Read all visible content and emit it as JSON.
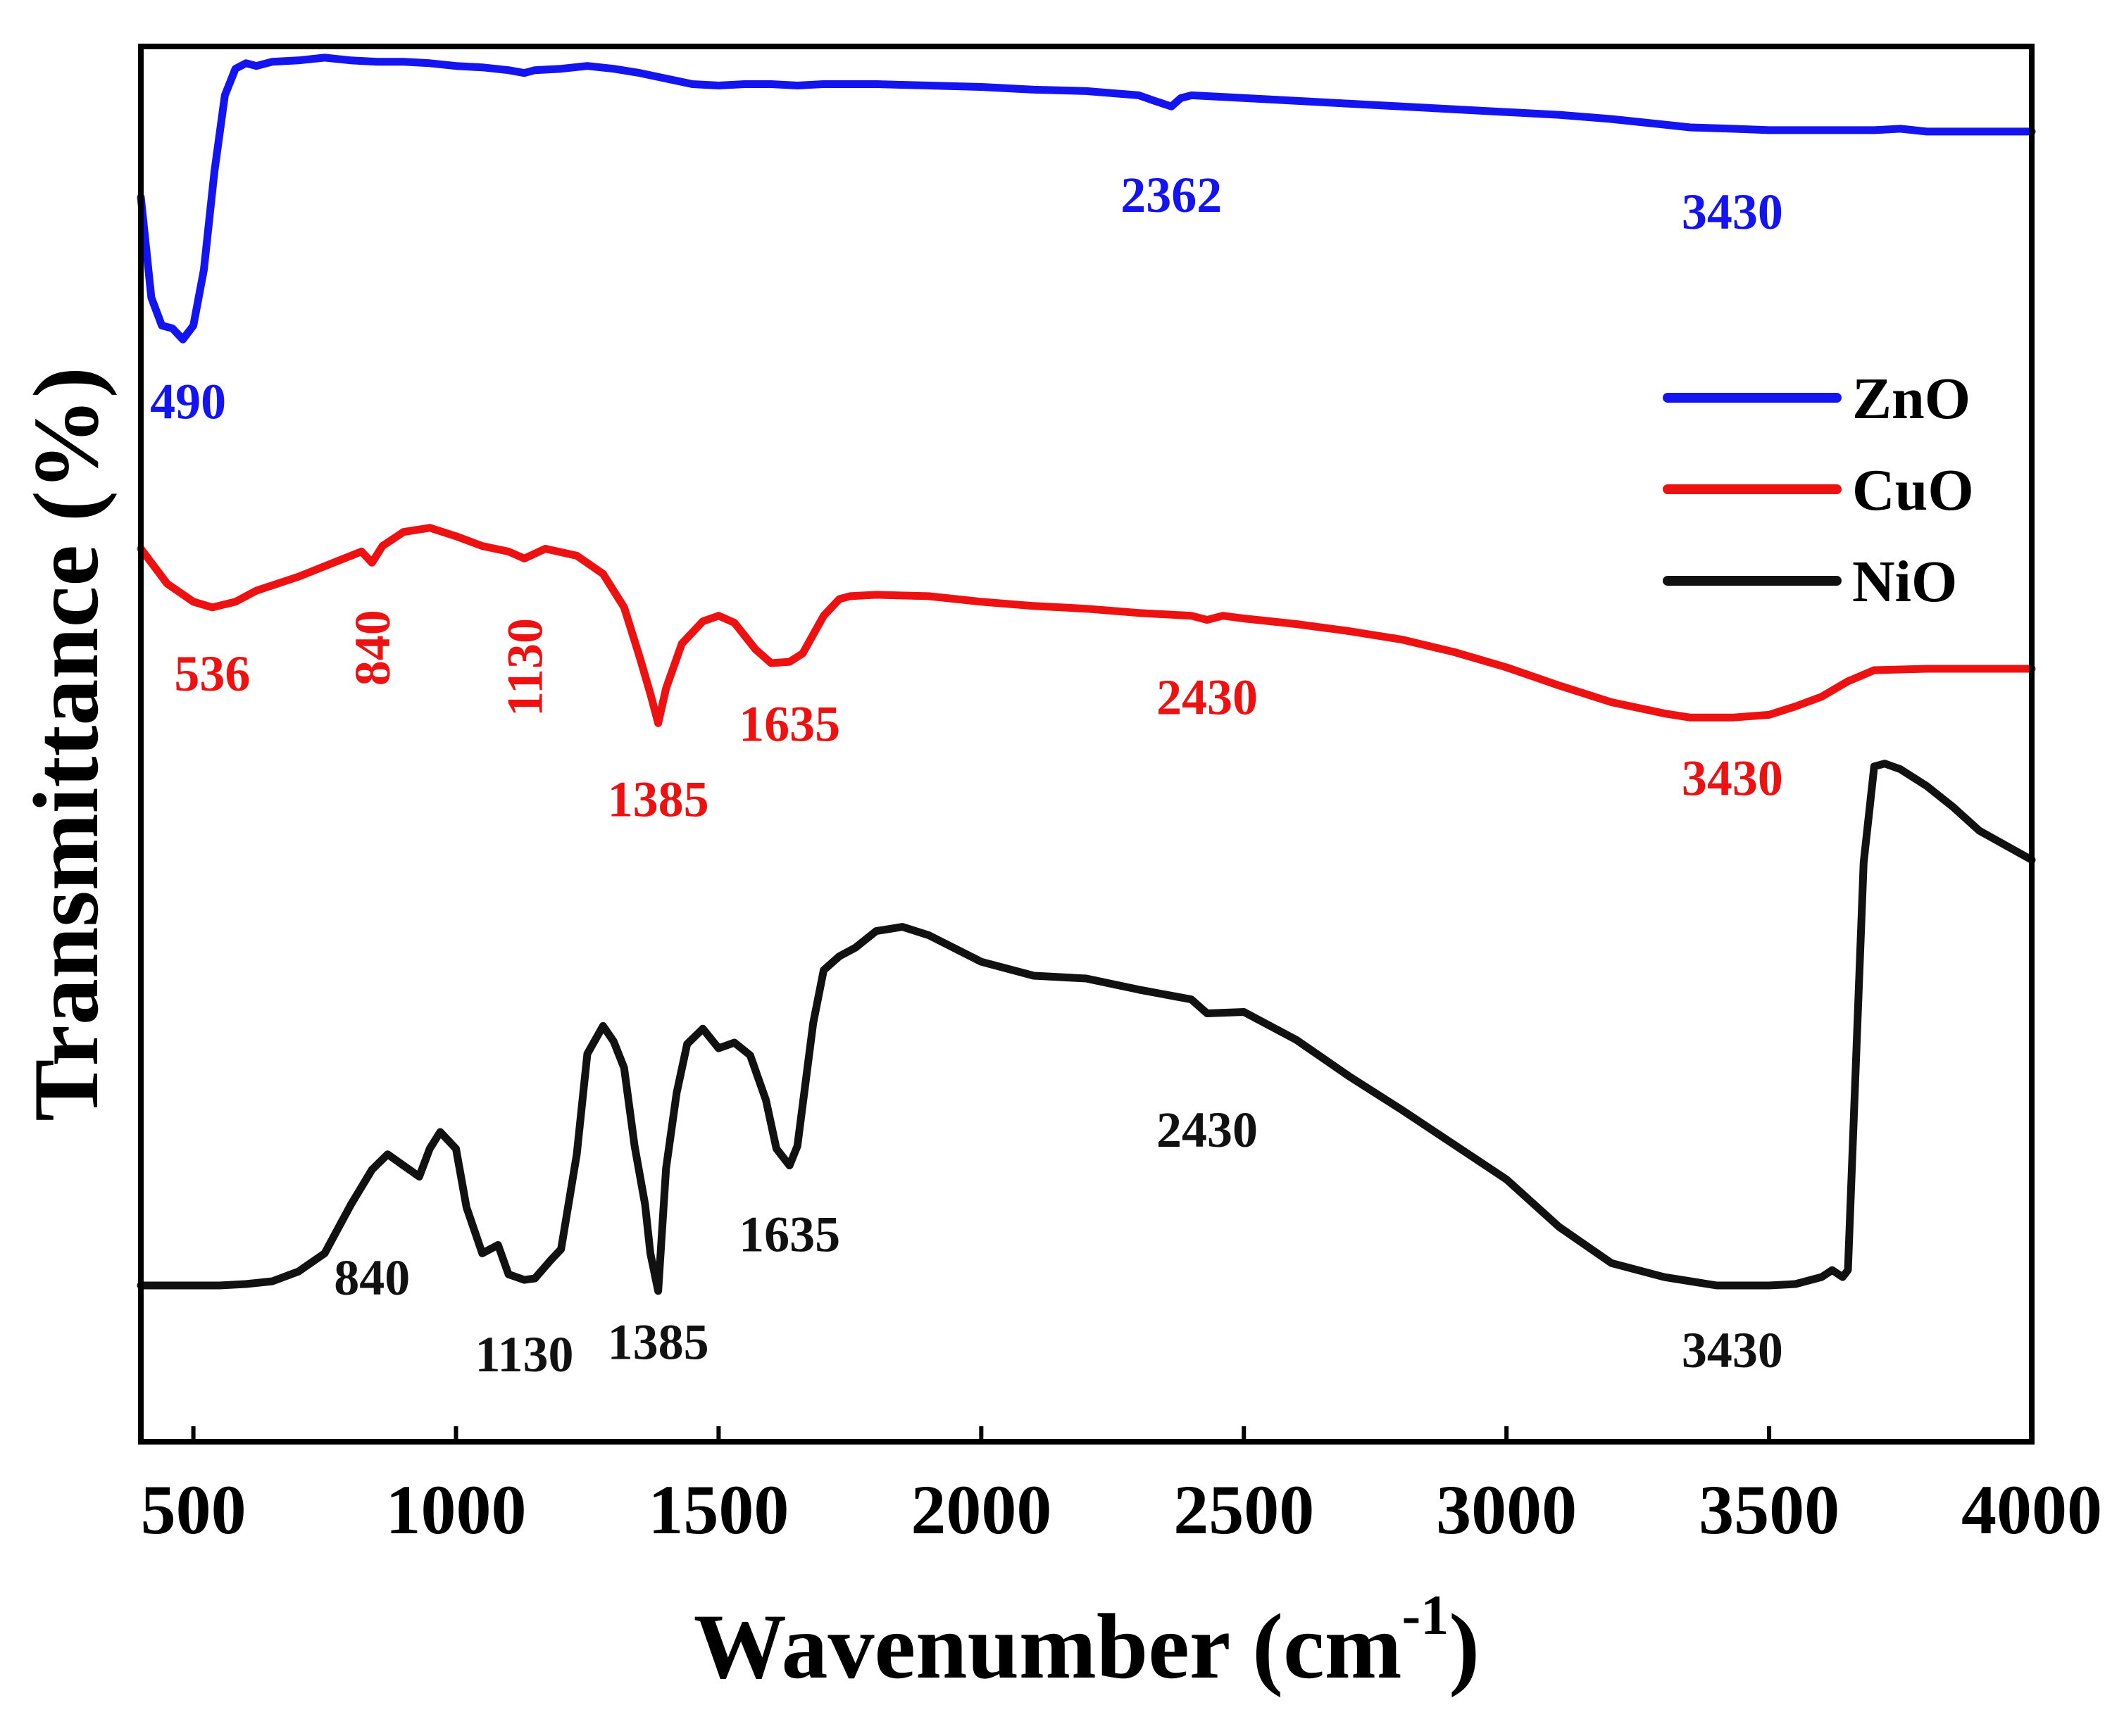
{
  "chart_data": {
    "type": "line",
    "title": "",
    "xlabel": "Wavenumber (cm",
    "xlabel_sup": "-1",
    "xlabel_close": ")",
    "ylabel": "Transmittance (%)",
    "xlim": [
      400,
      4000
    ],
    "ylim": [
      0,
      100
    ],
    "y_ticks_shown": false,
    "grid": false,
    "legend_position": "right",
    "x_ticks": [
      {
        "value": 500,
        "label": "500"
      },
      {
        "value": 1000,
        "label": "1000"
      },
      {
        "value": 1500,
        "label": "1500"
      },
      {
        "value": 2000,
        "label": "2000"
      },
      {
        "value": 2500,
        "label": "2500"
      },
      {
        "value": 3000,
        "label": "3000"
      },
      {
        "value": 3500,
        "label": "3500"
      },
      {
        "value": 4000,
        "label": "4000"
      }
    ],
    "series": [
      {
        "name": "ZnO",
        "color": "#1414f0",
        "x": [
          400,
          420,
          440,
          460,
          480,
          500,
          520,
          540,
          560,
          580,
          600,
          620,
          650,
          700,
          750,
          800,
          850,
          900,
          950,
          1000,
          1050,
          1100,
          1130,
          1150,
          1200,
          1250,
          1300,
          1350,
          1400,
          1450,
          1500,
          1550,
          1600,
          1650,
          1700,
          1800,
          1900,
          2000,
          2100,
          2200,
          2300,
          2330,
          2362,
          2380,
          2400,
          2500,
          2600,
          2700,
          2800,
          2900,
          3000,
          3100,
          3200,
          3300,
          3350,
          3430,
          3500,
          3600,
          3700,
          3750,
          3800,
          3900,
          4000
        ],
        "y": [
          89.2,
          82,
          80,
          79.8,
          79,
          80,
          84,
          91,
          96.5,
          98.4,
          98.8,
          98.6,
          98.9,
          99,
          99.2,
          99,
          98.9,
          98.9,
          98.8,
          98.6,
          98.5,
          98.3,
          98.1,
          98.3,
          98.4,
          98.6,
          98.4,
          98.1,
          97.7,
          97.3,
          97.2,
          97.3,
          97.3,
          97.2,
          97.3,
          97.3,
          97.2,
          97.1,
          96.9,
          96.8,
          96.5,
          96.1,
          95.7,
          96.3,
          96.5,
          96.3,
          96.1,
          95.9,
          95.7,
          95.5,
          95.3,
          95.1,
          94.8,
          94.4,
          94.2,
          94.1,
          94,
          94,
          94,
          94.1,
          93.9,
          93.9,
          93.9
        ]
      },
      {
        "name": "CuO",
        "color": "#ee1111",
        "x": [
          400,
          450,
          500,
          536,
          580,
          620,
          700,
          780,
          820,
          840,
          860,
          900,
          950,
          1000,
          1050,
          1100,
          1130,
          1170,
          1230,
          1280,
          1320,
          1350,
          1370,
          1385,
          1400,
          1430,
          1470,
          1500,
          1530,
          1570,
          1600,
          1635,
          1660,
          1700,
          1730,
          1750,
          1800,
          1900,
          2000,
          2100,
          2200,
          2300,
          2400,
          2430,
          2460,
          2500,
          2600,
          2700,
          2800,
          2900,
          3000,
          3100,
          3200,
          3300,
          3350,
          3430,
          3500,
          3550,
          3600,
          3650,
          3700,
          3800,
          3900,
          4000
        ],
        "y": [
          64,
          61.5,
          60.2,
          59.8,
          60.2,
          61,
          62,
          63.2,
          63.8,
          63,
          64.2,
          65.2,
          65.5,
          64.9,
          64.2,
          63.8,
          63.3,
          64,
          63.5,
          62.2,
          59.8,
          56.2,
          53.6,
          51.5,
          54,
          57.2,
          58.8,
          59.2,
          58.7,
          56.8,
          55.8,
          55.9,
          56.5,
          59.2,
          60.4,
          60.6,
          60.7,
          60.6,
          60.2,
          59.9,
          59.7,
          59.4,
          59.2,
          58.9,
          59.2,
          59,
          58.6,
          58.1,
          57.5,
          56.6,
          55.5,
          54.2,
          53,
          52.2,
          51.9,
          51.9,
          52.1,
          52.7,
          53.4,
          54.5,
          55.3,
          55.4,
          55.4,
          55.4
        ]
      },
      {
        "name": "NiO",
        "color": "#111111",
        "x": [
          400,
          450,
          500,
          550,
          600,
          650,
          700,
          750,
          800,
          840,
          870,
          900,
          930,
          950,
          970,
          1000,
          1020,
          1050,
          1080,
          1100,
          1130,
          1150,
          1180,
          1200,
          1230,
          1250,
          1280,
          1300,
          1320,
          1340,
          1360,
          1370,
          1385,
          1400,
          1420,
          1440,
          1470,
          1500,
          1530,
          1560,
          1590,
          1610,
          1635,
          1650,
          1680,
          1700,
          1730,
          1760,
          1800,
          1850,
          1900,
          2000,
          2100,
          2200,
          2300,
          2400,
          2430,
          2500,
          2600,
          2700,
          2800,
          2900,
          3000,
          3100,
          3200,
          3300,
          3400,
          3430,
          3500,
          3550,
          3600,
          3620,
          3640,
          3650,
          3660,
          3680,
          3700,
          3720,
          3750,
          3800,
          3850,
          3900,
          4000
        ],
        "y": [
          11.2,
          11.2,
          11.2,
          11.2,
          11.3,
          11.5,
          12.2,
          13.5,
          17,
          19.5,
          20.6,
          19.8,
          19,
          21,
          22.2,
          21,
          16.8,
          13.5,
          14.1,
          12,
          11.6,
          11.7,
          13,
          13.8,
          20.6,
          27.8,
          29.8,
          28.7,
          26.8,
          21.2,
          17,
          13.5,
          10.8,
          19.6,
          25,
          28.5,
          29.6,
          28.2,
          28.6,
          27.7,
          24.5,
          21,
          19.8,
          21.2,
          30,
          33.8,
          34.8,
          35.4,
          36.6,
          36.9,
          36.3,
          34.4,
          33.4,
          33.2,
          32.4,
          31.7,
          30.7,
          30.8,
          28.8,
          26.2,
          23.8,
          21.3,
          18.8,
          15.4,
          12.8,
          11.8,
          11.2,
          11.2,
          11.2,
          11.3,
          11.8,
          12.3,
          11.8,
          12.3,
          22,
          41.5,
          48.4,
          48.6,
          48.2,
          47,
          45.5,
          43.8,
          41.7
        ]
      }
    ],
    "annotations": [
      {
        "series": "ZnO",
        "text": "490",
        "x": 490,
        "y": 74.6
      },
      {
        "series": "ZnO",
        "text": "2362",
        "x": 2362,
        "y": 89.4
      },
      {
        "series": "ZnO",
        "text": "3430",
        "x": 3430,
        "y": 88.2
      },
      {
        "series": "CuO",
        "text": "536",
        "x": 536,
        "y": 55.1
      },
      {
        "series": "CuO",
        "text": "840",
        "x": 840,
        "y": 56.9,
        "rotated": true
      },
      {
        "series": "CuO",
        "text": "1130",
        "x": 1130,
        "y": 55.5,
        "rotated": true
      },
      {
        "series": "CuO",
        "text": "1385",
        "x": 1385,
        "y": 46.1
      },
      {
        "series": "CuO",
        "text": "1635",
        "x": 1635,
        "y": 51.5
      },
      {
        "series": "CuO",
        "text": "2430",
        "x": 2430,
        "y": 53.4
      },
      {
        "series": "CuO",
        "text": "3430",
        "x": 3430,
        "y": 47.6
      },
      {
        "series": "NiO",
        "text": "840",
        "x": 840,
        "y": 11.8
      },
      {
        "series": "NiO",
        "text": "1130",
        "x": 1130,
        "y": 6.3
      },
      {
        "series": "NiO",
        "text": "1385",
        "x": 1385,
        "y": 7.2
      },
      {
        "series": "NiO",
        "text": "1635",
        "x": 1635,
        "y": 14.9
      },
      {
        "series": "NiO",
        "text": "2430",
        "x": 2430,
        "y": 22.4
      },
      {
        "series": "NiO",
        "text": "3430",
        "x": 3430,
        "y": 6.6
      }
    ]
  }
}
